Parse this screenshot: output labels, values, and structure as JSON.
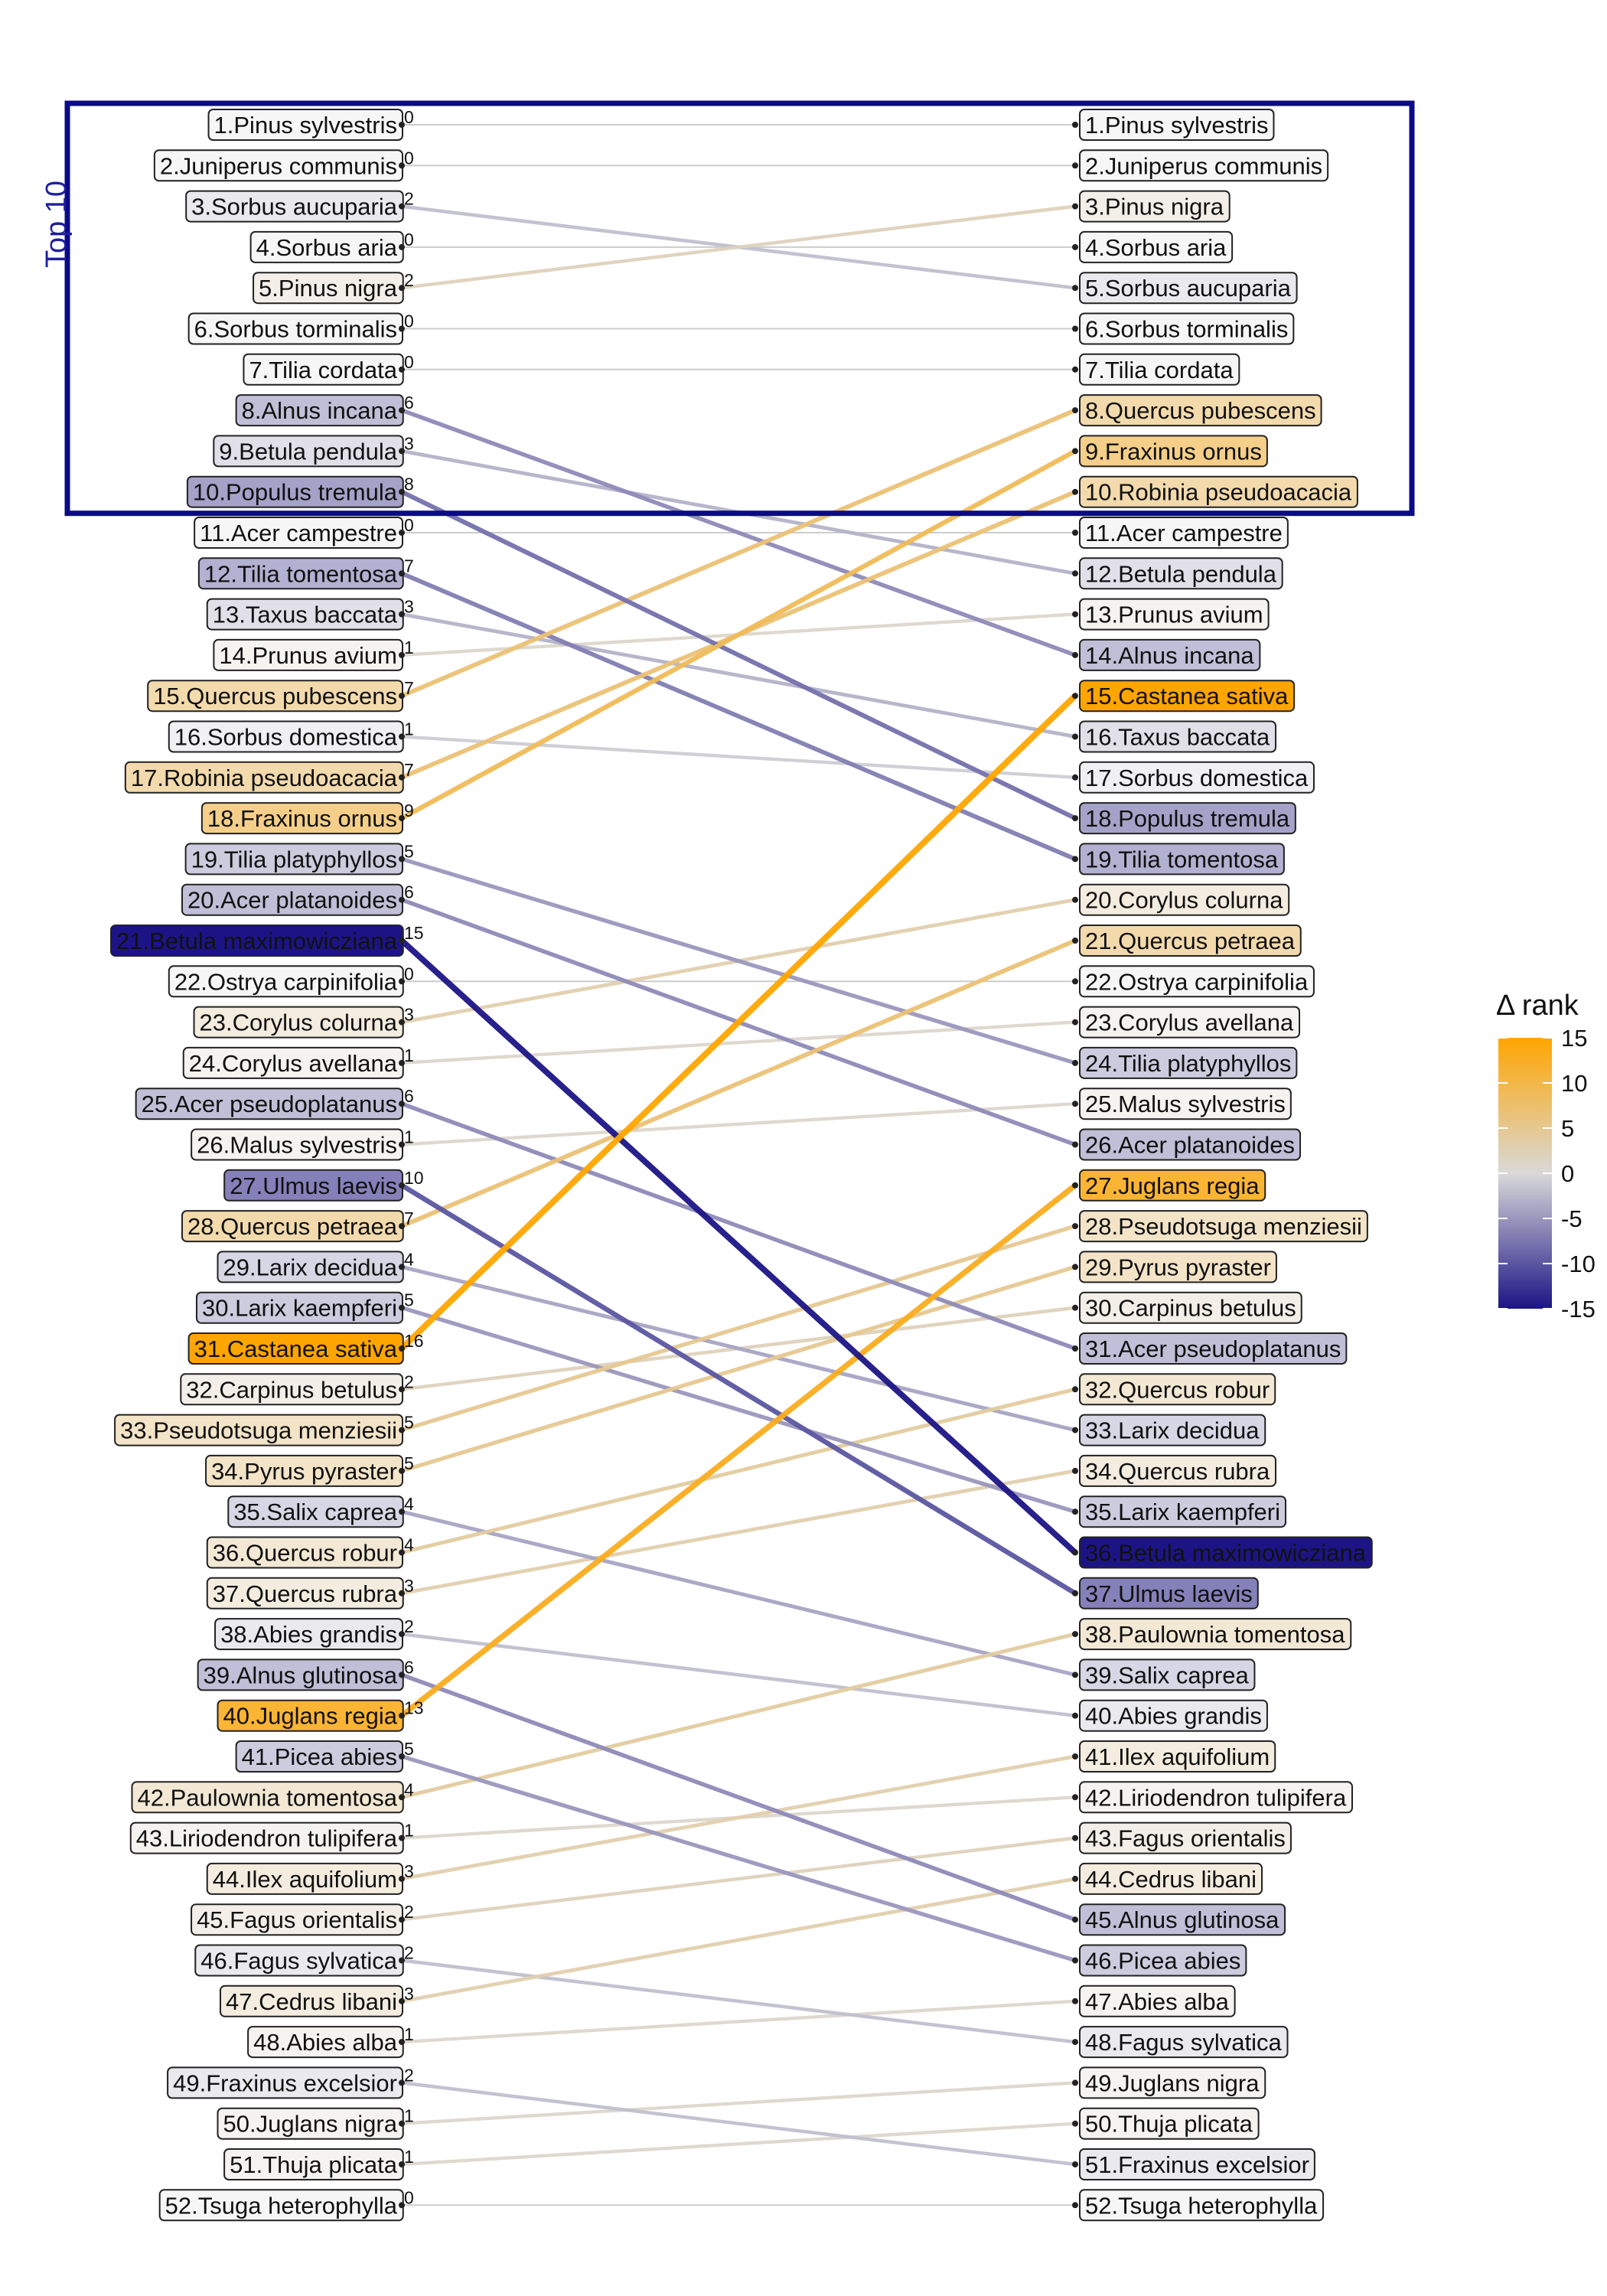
{
  "chart_data": {
    "type": "slope",
    "left_ranking": [
      "Pinus sylvestris",
      "Juniperus communis",
      "Sorbus aucuparia",
      "Sorbus aria",
      "Pinus nigra",
      "Sorbus torminalis",
      "Tilia cordata",
      "Alnus incana",
      "Betula pendula",
      "Populus tremula",
      "Acer campestre",
      "Tilia tomentosa",
      "Taxus baccata",
      "Prunus avium",
      "Quercus pubescens",
      "Sorbus domestica",
      "Robinia pseudoacacia",
      "Fraxinus ornus",
      "Tilia platyphyllos",
      "Acer platanoides",
      "Betula maximowicziana",
      "Ostrya carpinifolia",
      "Corylus colurna",
      "Corylus avellana",
      "Acer pseudoplatanus",
      "Malus sylvestris",
      "Ulmus laevis",
      "Quercus petraea",
      "Larix decidua",
      "Larix kaempferi",
      "Castanea sativa",
      "Carpinus betulus",
      "Pseudotsuga menziesii",
      "Pyrus pyraster",
      "Salix caprea",
      "Quercus robur",
      "Quercus rubra",
      "Abies grandis",
      "Alnus glutinosa",
      "Juglans regia",
      "Picea abies",
      "Paulownia tomentosa",
      "Liriodendron tulipifera",
      "Ilex aquifolium",
      "Fagus orientalis",
      "Fagus sylvatica",
      "Cedrus libani",
      "Abies alba",
      "Fraxinus excelsior",
      "Juglans nigra",
      "Thuja plicata",
      "Tsuga heterophylla"
    ],
    "right_ranking": [
      "Pinus sylvestris",
      "Juniperus communis",
      "Pinus nigra",
      "Sorbus aria",
      "Sorbus aucuparia",
      "Sorbus torminalis",
      "Tilia cordata",
      "Quercus pubescens",
      "Fraxinus ornus",
      "Robinia pseudoacacia",
      "Acer campestre",
      "Betula pendula",
      "Prunus avium",
      "Alnus incana",
      "Castanea sativa",
      "Taxus baccata",
      "Sorbus domestica",
      "Populus tremula",
      "Tilia tomentosa",
      "Corylus colurna",
      "Quercus petraea",
      "Ostrya carpinifolia",
      "Corylus avellana",
      "Tilia platyphyllos",
      "Malus sylvestris",
      "Acer platanoides",
      "Juglans regia",
      "Pseudotsuga menziesii",
      "Pyrus pyraster",
      "Carpinus betulus",
      "Acer pseudoplatanus",
      "Quercus robur",
      "Larix decidua",
      "Quercus rubra",
      "Larix kaempferi",
      "Betula maximowicziana",
      "Ulmus laevis",
      "Paulownia tomentosa",
      "Salix caprea",
      "Abies grandis",
      "Ilex aquifolium",
      "Liriodendron tulipifera",
      "Fagus orientalis",
      "Cedrus libani",
      "Alnus glutinosa",
      "Picea abies",
      "Abies alba",
      "Fagus sylvatica",
      "Juglans nigra",
      "Thuja plicata",
      "Fraxinus excelsior",
      "Tsuga heterophylla"
    ],
    "delta_rank_labels": [
      "0",
      "0",
      "2",
      "0",
      "2",
      "0",
      "0",
      "6",
      "3",
      "8",
      "0",
      "7",
      "3",
      "1",
      "7",
      "1",
      "7",
      "9",
      "5",
      "6",
      "15",
      "0",
      "3",
      "1",
      "6",
      "1",
      "10",
      "7",
      "4",
      "5",
      "16",
      "2",
      "5",
      "5",
      "4",
      "4",
      "3",
      "2",
      "6",
      "13",
      "5",
      "4",
      "1",
      "3",
      "2",
      "2",
      "3",
      "1",
      "2",
      "1",
      "1",
      "0"
    ],
    "legend": {
      "title": "Δ rank",
      "ticks": [
        "15",
        "10",
        "5",
        "0",
        "-5",
        "-10",
        "-15"
      ],
      "range": [
        -15,
        15
      ],
      "colors": {
        "low": "#1c1485",
        "mid": "#d9d9d9",
        "high": "#ffa500"
      }
    },
    "highlight": {
      "label": "Top 10",
      "ranks": [
        1,
        10
      ],
      "color": "#0b0b87"
    },
    "line_color": "#aaaaaa"
  }
}
